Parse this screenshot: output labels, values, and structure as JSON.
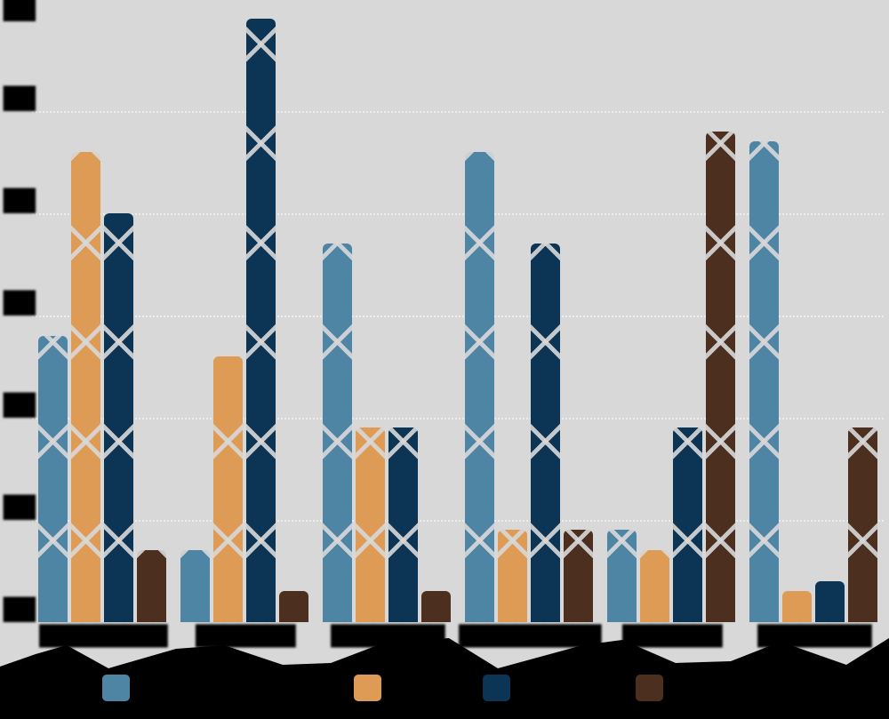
{
  "canvas": {
    "background_color": "#000000",
    "plot_background_color": "#D8D8D8",
    "note_visual_style": "low-poly diamond-distorted bar chart; all text rendered as illegible black blobs"
  },
  "chart_data": {
    "type": "bar",
    "title": "",
    "xlabel": "",
    "ylabel": "",
    "categories": [
      "█████████",
      "███████",
      "████████",
      "██████████",
      "███████",
      "████████"
    ],
    "series": [
      {
        "name": "███████████████",
        "color": "#4E85A5",
        "values": [
          14,
          3.5,
          18.5,
          23,
          4.5,
          23.5
        ]
      },
      {
        "name": "████████",
        "color": "#DE9B55",
        "values": [
          23,
          13,
          9.5,
          4.5,
          3.5,
          1.5
        ]
      },
      {
        "name": "██████████",
        "color": "#0B3455",
        "values": [
          20,
          29.5,
          9.5,
          18.5,
          9.5,
          2
        ]
      },
      {
        "name": "███████████",
        "color": "#4D2F20",
        "values": [
          3.5,
          1.5,
          1.5,
          4.5,
          24,
          9.5
        ]
      }
    ],
    "ylim": [
      0,
      30
    ],
    "yticks_estimated": [
      0,
      5,
      10,
      15,
      20,
      25,
      30
    ],
    "ytick_label_blob": "██",
    "grid": "horizontal-dotted-white",
    "legend_position": "bottom"
  }
}
